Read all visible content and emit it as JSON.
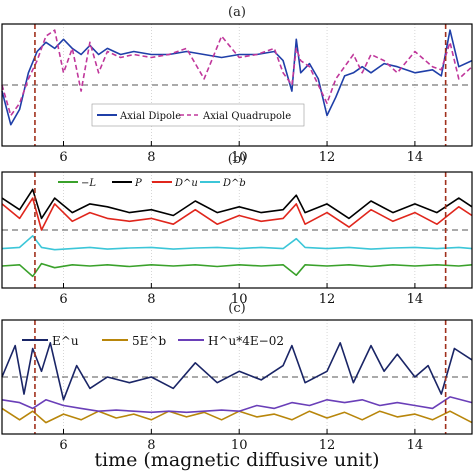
{
  "figure": {
    "xlabel": "time (magnetic diffusive unit)",
    "markers": [
      5.35,
      14.7
    ],
    "colors": {
      "frame": "#000000",
      "marker": "#a0301c",
      "zero": "#555555",
      "grid": "#bbbbbb"
    }
  },
  "chart_data": [
    {
      "type": "line",
      "panel_label": "(a)",
      "xlim": [
        4.6,
        15.3
      ],
      "ylim": [
        -1.0,
        1.0
      ],
      "grid": true,
      "xticks": [
        6,
        8,
        10,
        12,
        14
      ],
      "xtick_labels": [
        "6",
        "8",
        "10",
        "12",
        "14"
      ],
      "legend_position": "bottom-center",
      "series": [
        {
          "name": "Axial Dipole",
          "color": "#1f3fa8",
          "dash": "solid",
          "x": [
            4.6,
            4.8,
            5.0,
            5.2,
            5.4,
            5.6,
            5.8,
            6.0,
            6.2,
            6.4,
            6.6,
            6.8,
            7.0,
            7.3,
            7.6,
            8.0,
            8.4,
            8.8,
            9.2,
            9.6,
            10.0,
            10.4,
            10.8,
            11.0,
            11.2,
            11.3,
            11.4,
            11.6,
            11.8,
            12.0,
            12.2,
            12.4,
            12.6,
            12.8,
            13.0,
            13.3,
            13.6,
            14.0,
            14.4,
            14.6,
            14.8,
            15.0,
            15.3
          ],
          "y": [
            -0.1,
            -0.65,
            -0.4,
            0.2,
            0.55,
            0.7,
            0.6,
            0.75,
            0.6,
            0.5,
            0.65,
            0.5,
            0.6,
            0.5,
            0.55,
            0.5,
            0.5,
            0.55,
            0.5,
            0.45,
            0.5,
            0.5,
            0.55,
            0.4,
            -0.1,
            0.75,
            0.2,
            0.35,
            0.1,
            -0.5,
            -0.2,
            0.15,
            0.2,
            0.3,
            0.2,
            0.35,
            0.3,
            0.2,
            0.25,
            0.15,
            0.9,
            0.3,
            0.4
          ]
        },
        {
          "name": "Axial Quadrupole",
          "color": "#c0379b",
          "dash": "dashed",
          "x": [
            4.6,
            4.8,
            5.0,
            5.2,
            5.4,
            5.6,
            5.8,
            6.0,
            6.2,
            6.4,
            6.6,
            6.8,
            7.0,
            7.3,
            7.6,
            8.0,
            8.4,
            8.8,
            9.2,
            9.6,
            10.0,
            10.4,
            10.8,
            11.0,
            11.2,
            11.3,
            11.4,
            11.6,
            11.8,
            12.0,
            12.2,
            12.4,
            12.6,
            12.8,
            13.0,
            13.3,
            13.6,
            14.0,
            14.4,
            14.6,
            14.8,
            15.0,
            15.3
          ],
          "y": [
            0.0,
            -0.5,
            -0.3,
            0.1,
            0.4,
            0.8,
            0.9,
            0.2,
            0.6,
            -0.1,
            0.7,
            0.2,
            0.55,
            0.45,
            0.5,
            0.45,
            0.5,
            0.6,
            0.1,
            0.8,
            0.45,
            0.5,
            0.6,
            0.2,
            0.0,
            0.6,
            0.4,
            0.3,
            0.0,
            -0.3,
            0.1,
            0.3,
            0.5,
            0.2,
            0.5,
            0.4,
            0.2,
            0.55,
            0.3,
            0.25,
            0.7,
            0.1,
            0.3
          ]
        }
      ]
    },
    {
      "type": "line",
      "panel_label": "(b)",
      "xlim": [
        4.6,
        15.3
      ],
      "ylim": [
        -1.0,
        1.0
      ],
      "grid": true,
      "xticks": [
        6,
        8,
        10,
        12,
        14
      ],
      "xtick_labels": [
        "6",
        "8",
        "10",
        "12",
        "14"
      ],
      "legend_position": "top",
      "series": [
        {
          "name": "−L",
          "color": "#3aa12b",
          "dash": "solid",
          "x": [
            4.6,
            5.0,
            5.3,
            5.5,
            5.8,
            6.2,
            6.6,
            7.0,
            7.5,
            8.0,
            8.5,
            9.0,
            9.5,
            10.0,
            10.5,
            11.0,
            11.3,
            11.5,
            12.0,
            12.5,
            13.0,
            13.5,
            14.0,
            14.5,
            15.0,
            15.3
          ],
          "y": [
            -0.62,
            -0.6,
            -0.8,
            -0.58,
            -0.65,
            -0.6,
            -0.62,
            -0.6,
            -0.63,
            -0.6,
            -0.62,
            -0.6,
            -0.63,
            -0.6,
            -0.62,
            -0.6,
            -0.78,
            -0.6,
            -0.62,
            -0.6,
            -0.63,
            -0.6,
            -0.62,
            -0.6,
            -0.62,
            -0.6
          ]
        },
        {
          "name": "P",
          "color": "#000000",
          "dash": "solid",
          "x": [
            4.6,
            5.0,
            5.3,
            5.5,
            5.8,
            6.2,
            6.6,
            7.0,
            7.5,
            8.0,
            8.5,
            9.0,
            9.5,
            10.0,
            10.5,
            11.0,
            11.3,
            11.5,
            12.0,
            12.5,
            13.0,
            13.5,
            14.0,
            14.5,
            15.0,
            15.3
          ],
          "y": [
            0.55,
            0.35,
            0.7,
            0.2,
            0.55,
            0.3,
            0.45,
            0.4,
            0.3,
            0.35,
            0.25,
            0.5,
            0.3,
            0.4,
            0.3,
            0.35,
            0.6,
            0.3,
            0.45,
            0.2,
            0.5,
            0.3,
            0.45,
            0.3,
            0.55,
            0.4
          ]
        },
        {
          "name": "D^u",
          "color": "#e0261c",
          "dash": "solid",
          "x": [
            4.6,
            5.0,
            5.3,
            5.5,
            5.8,
            6.2,
            6.6,
            7.0,
            7.5,
            8.0,
            8.5,
            9.0,
            9.5,
            10.0,
            10.5,
            11.0,
            11.3,
            11.5,
            12.0,
            12.5,
            13.0,
            13.5,
            14.0,
            14.5,
            15.0,
            15.3
          ],
          "y": [
            0.45,
            0.2,
            0.55,
            0.0,
            0.45,
            0.15,
            0.3,
            0.2,
            0.15,
            0.2,
            0.1,
            0.35,
            0.1,
            0.25,
            0.15,
            0.2,
            0.45,
            0.1,
            0.3,
            0.05,
            0.35,
            0.15,
            0.3,
            0.1,
            0.4,
            0.25
          ]
        },
        {
          "name": "D^b",
          "color": "#3cc6d8",
          "dash": "solid",
          "x": [
            4.6,
            5.0,
            5.3,
            5.5,
            5.8,
            6.2,
            6.6,
            7.0,
            7.5,
            8.0,
            8.5,
            9.0,
            9.5,
            10.0,
            10.5,
            11.0,
            11.3,
            11.5,
            12.0,
            12.5,
            13.0,
            13.5,
            14.0,
            14.5,
            15.0,
            15.3
          ],
          "y": [
            -0.32,
            -0.3,
            -0.1,
            -0.3,
            -0.34,
            -0.32,
            -0.3,
            -0.33,
            -0.31,
            -0.3,
            -0.33,
            -0.31,
            -0.3,
            -0.32,
            -0.3,
            -0.32,
            -0.15,
            -0.3,
            -0.32,
            -0.3,
            -0.33,
            -0.31,
            -0.3,
            -0.32,
            -0.3,
            -0.32
          ]
        }
      ]
    },
    {
      "type": "line",
      "panel_label": "(c)",
      "xlim": [
        4.6,
        15.3
      ],
      "ylim": [
        -1.0,
        1.0
      ],
      "grid": true,
      "xticks": [
        6,
        8,
        10,
        12,
        14
      ],
      "xtick_labels": [
        "6",
        "8",
        "10",
        "12",
        "14"
      ],
      "legend_position": "top",
      "series": [
        {
          "name": "E^u",
          "color": "#1a2566",
          "dash": "solid",
          "x": [
            4.6,
            4.9,
            5.1,
            5.3,
            5.5,
            5.7,
            6.0,
            6.3,
            6.6,
            7.0,
            7.5,
            8.0,
            8.5,
            9.0,
            9.5,
            10.0,
            10.5,
            11.0,
            11.2,
            11.5,
            12.0,
            12.3,
            12.6,
            13.0,
            13.3,
            13.6,
            14.0,
            14.3,
            14.6,
            14.9,
            15.3
          ],
          "y": [
            0.0,
            0.55,
            -0.3,
            0.5,
            0.1,
            0.6,
            -0.4,
            0.2,
            -0.2,
            0.0,
            -0.1,
            0.0,
            -0.2,
            0.25,
            -0.1,
            0.1,
            -0.05,
            0.2,
            0.55,
            -0.1,
            0.1,
            0.6,
            -0.1,
            0.55,
            0.1,
            0.4,
            0.0,
            0.2,
            -0.3,
            0.5,
            0.3
          ]
        },
        {
          "name": "5E^b",
          "color": "#b8860b",
          "dash": "solid",
          "x": [
            4.6,
            5.0,
            5.3,
            5.6,
            6.0,
            6.4,
            6.8,
            7.2,
            7.6,
            8.0,
            8.4,
            8.8,
            9.2,
            9.6,
            10.0,
            10.4,
            10.8,
            11.2,
            11.6,
            12.0,
            12.4,
            12.8,
            13.2,
            13.6,
            14.0,
            14.4,
            14.8,
            15.3
          ],
          "y": [
            -0.55,
            -0.75,
            -0.6,
            -0.8,
            -0.65,
            -0.75,
            -0.6,
            -0.72,
            -0.65,
            -0.75,
            -0.6,
            -0.7,
            -0.62,
            -0.75,
            -0.6,
            -0.7,
            -0.65,
            -0.75,
            -0.6,
            -0.72,
            -0.62,
            -0.75,
            -0.6,
            -0.7,
            -0.65,
            -0.75,
            -0.6,
            -0.8
          ]
        },
        {
          "name": "H^u*4E−02",
          "color": "#6a3fb8",
          "dash": "solid",
          "x": [
            4.6,
            5.0,
            5.3,
            5.6,
            6.0,
            6.4,
            6.8,
            7.2,
            7.6,
            8.0,
            8.4,
            8.8,
            9.2,
            9.6,
            10.0,
            10.4,
            10.8,
            11.2,
            11.6,
            12.0,
            12.4,
            12.8,
            13.2,
            13.6,
            14.0,
            14.4,
            14.8,
            15.3
          ],
          "y": [
            -0.4,
            -0.45,
            -0.55,
            -0.4,
            -0.5,
            -0.55,
            -0.6,
            -0.58,
            -0.6,
            -0.62,
            -0.6,
            -0.62,
            -0.6,
            -0.58,
            -0.6,
            -0.5,
            -0.55,
            -0.45,
            -0.5,
            -0.4,
            -0.45,
            -0.4,
            -0.5,
            -0.45,
            -0.5,
            -0.55,
            -0.35,
            -0.45
          ]
        }
      ]
    }
  ]
}
